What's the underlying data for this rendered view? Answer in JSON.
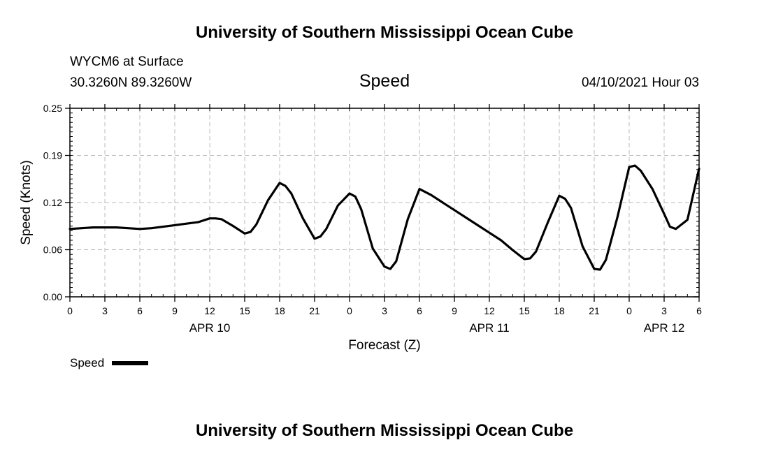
{
  "header": {
    "title_top": "University of Southern Mississippi Ocean Cube",
    "title_bottom": "University of Southern Mississippi Ocean Cube",
    "station": "WYCM6 at Surface",
    "location": "30.3260N  89.3260W",
    "run_time": "04/10/2021 Hour 03"
  },
  "legend": {
    "label": "Speed"
  },
  "colors": {
    "line": "#000000",
    "grid": "#bbbbbb",
    "axis": "#000000",
    "background": "#ffffff"
  },
  "chart_data": {
    "type": "line",
    "title": "Speed",
    "xlabel": "Forecast (Z)",
    "ylabel": "Speed (Knots)",
    "xlim": [
      0,
      54
    ],
    "ylim": [
      0,
      0.25
    ],
    "grid": true,
    "legend_position": "bottom-left",
    "x_tick_values": [
      0,
      3,
      6,
      9,
      12,
      15,
      18,
      21,
      24,
      27,
      30,
      33,
      36,
      39,
      42,
      45,
      48,
      51,
      54
    ],
    "x_tick_labels": [
      "0",
      "3",
      "6",
      "9",
      "12",
      "15",
      "18",
      "21",
      "0",
      "3",
      "6",
      "9",
      "12",
      "15",
      "18",
      "21",
      "0",
      "3",
      "6"
    ],
    "y_tick_values": [
      0,
      0.0625,
      0.125,
      0.1875,
      0.25
    ],
    "y_tick_labels": [
      "0.00",
      "0.06",
      "0.12",
      "0.19",
      "0.25"
    ],
    "date_labels": [
      {
        "x": 12,
        "label": "APR 10"
      },
      {
        "x": 36,
        "label": "APR 11"
      },
      {
        "x": 51,
        "label": "APR 12"
      }
    ],
    "series": [
      {
        "name": "Speed",
        "x": [
          0,
          1,
          2,
          3,
          4,
          5,
          6,
          7,
          8,
          9,
          10,
          11,
          12,
          12.5,
          13,
          14,
          15,
          15.5,
          16,
          17,
          18,
          18.5,
          19,
          20,
          21,
          21.5,
          22,
          23,
          24,
          24.5,
          25,
          26,
          27,
          27.5,
          28,
          29,
          30,
          31,
          32,
          33,
          34,
          35,
          36,
          37,
          38,
          39,
          39.5,
          40,
          41,
          42,
          42.5,
          43,
          44,
          45,
          45.5,
          46,
          47,
          48,
          48.5,
          49,
          50,
          51,
          51.5,
          52,
          53,
          54
        ],
        "y": [
          0.09,
          0.091,
          0.092,
          0.092,
          0.092,
          0.091,
          0.09,
          0.091,
          0.093,
          0.095,
          0.097,
          0.099,
          0.104,
          0.104,
          0.103,
          0.094,
          0.084,
          0.086,
          0.096,
          0.128,
          0.151,
          0.147,
          0.137,
          0.104,
          0.077,
          0.08,
          0.09,
          0.121,
          0.137,
          0.133,
          0.116,
          0.064,
          0.04,
          0.037,
          0.047,
          0.103,
          0.143,
          0.135,
          0.125,
          0.115,
          0.105,
          0.095,
          0.085,
          0.075,
          0.062,
          0.05,
          0.051,
          0.06,
          0.098,
          0.134,
          0.13,
          0.118,
          0.067,
          0.037,
          0.036,
          0.049,
          0.106,
          0.172,
          0.174,
          0.167,
          0.143,
          0.11,
          0.093,
          0.09,
          0.102,
          0.17
        ]
      }
    ]
  }
}
